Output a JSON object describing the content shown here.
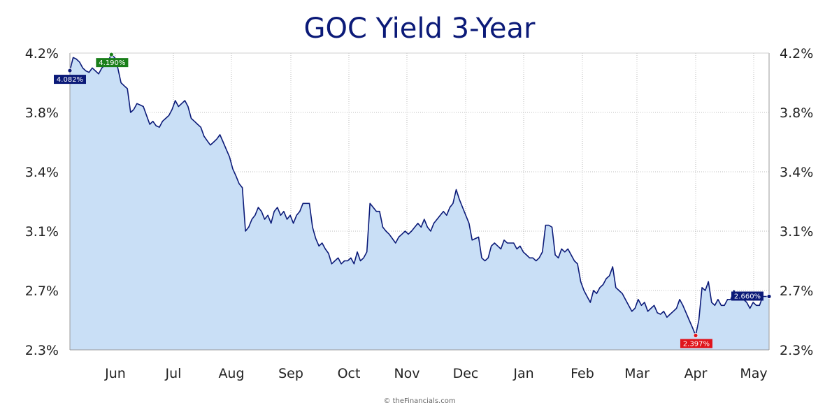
{
  "chart_data": {
    "type": "area",
    "title": "GOC Yield 3-Year",
    "xlabel": "",
    "ylabel": "",
    "y_ticks": [
      "2.3%",
      "2.7%",
      "3.1%",
      "3.4%",
      "3.8%",
      "4.2%"
    ],
    "x_ticks": [
      "Jun",
      "Jul",
      "Aug",
      "Sep",
      "Oct",
      "Nov",
      "Dec",
      "Jan",
      "Feb",
      "Mar",
      "Apr",
      "May"
    ],
    "ylim": [
      2.3,
      4.2
    ],
    "grid": true,
    "colors": {
      "line": "#0b1a78",
      "fill": "#c9dff6",
      "high": "#1a7f1a",
      "low": "#e0141c",
      "label": "#0b1a78"
    },
    "series": [
      {
        "values": [
          4.082,
          4.17,
          4.16,
          4.14,
          4.1,
          4.08,
          4.07,
          4.1,
          4.08,
          4.06,
          4.1,
          4.12,
          4.15,
          4.19,
          4.17,
          4.1,
          4.0,
          3.98,
          3.96,
          3.8,
          3.82,
          3.86,
          3.85,
          3.84,
          3.78,
          3.72,
          3.74,
          3.71,
          3.7,
          3.74,
          3.76,
          3.78,
          3.82,
          3.88,
          3.84,
          3.86,
          3.88,
          3.84,
          3.76,
          3.74,
          3.72,
          3.7,
          3.64,
          3.61,
          3.58,
          3.6,
          3.62,
          3.65,
          3.6,
          3.55,
          3.5,
          3.42,
          3.38,
          3.34,
          3.32,
          3.1,
          3.12,
          3.16,
          3.18,
          3.22,
          3.2,
          3.16,
          3.18,
          3.14,
          3.2,
          3.22,
          3.18,
          3.2,
          3.16,
          3.18,
          3.14,
          3.18,
          3.2,
          3.24,
          3.24,
          3.24,
          3.12,
          3.05,
          3.0,
          3.02,
          2.98,
          2.95,
          2.88,
          2.9,
          2.92,
          2.88,
          2.9,
          2.9,
          2.92,
          2.88,
          2.96,
          2.9,
          2.92,
          2.96,
          3.24,
          3.22,
          3.2,
          3.2,
          3.12,
          3.1,
          3.08,
          3.05,
          3.02,
          3.06,
          3.08,
          3.1,
          3.08,
          3.1,
          3.12,
          3.14,
          3.12,
          3.16,
          3.12,
          3.1,
          3.14,
          3.16,
          3.18,
          3.2,
          3.18,
          3.22,
          3.24,
          3.31,
          3.26,
          3.22,
          3.18,
          3.14,
          3.04,
          3.05,
          3.06,
          2.92,
          2.9,
          2.92,
          3.0,
          3.02,
          3.0,
          2.98,
          3.04,
          3.02,
          3.02,
          3.02,
          2.98,
          3.0,
          2.96,
          2.94,
          2.92,
          2.92,
          2.9,
          2.92,
          2.96,
          3.13,
          3.13,
          3.12,
          2.94,
          2.92,
          2.98,
          2.96,
          2.98,
          2.94,
          2.9,
          2.88,
          2.76,
          2.7,
          2.66,
          2.62,
          2.7,
          2.68,
          2.72,
          2.74,
          2.78,
          2.8,
          2.86,
          2.72,
          2.7,
          2.68,
          2.64,
          2.6,
          2.56,
          2.58,
          2.64,
          2.6,
          2.62,
          2.56,
          2.58,
          2.6,
          2.55,
          2.54,
          2.56,
          2.52,
          2.54,
          2.56,
          2.58,
          2.64,
          2.6,
          2.55,
          2.5,
          2.45,
          2.397,
          2.5,
          2.72,
          2.7,
          2.76,
          2.62,
          2.6,
          2.64,
          2.6,
          2.6,
          2.64,
          2.64,
          2.7,
          2.64,
          2.66,
          2.64,
          2.62,
          2.58,
          2.62,
          2.6,
          2.6,
          2.66,
          2.66,
          2.66
        ]
      }
    ],
    "annotations": [
      {
        "label": "4.082%",
        "kind": "start",
        "value": 4.082
      },
      {
        "label": "4.190%",
        "kind": "high",
        "value": 4.19
      },
      {
        "label": "2.397%",
        "kind": "low",
        "value": 2.397
      },
      {
        "label": "2.660%",
        "kind": "last",
        "value": 2.66
      }
    ]
  },
  "footer": {
    "credit": "© theFinancials.com"
  }
}
